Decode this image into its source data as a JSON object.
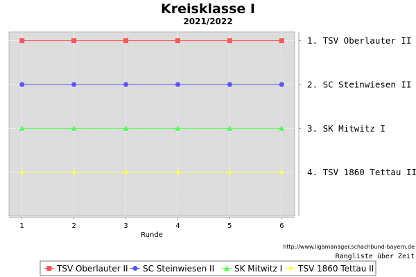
{
  "chart_data": {
    "type": "line",
    "title": "Kreisklasse I",
    "subtitle": "2021/2022",
    "xlabel": "Runde",
    "ylabel": "",
    "x": [
      1,
      2,
      3,
      4,
      5,
      6
    ],
    "xlim": [
      0.75,
      6.25
    ],
    "ylim": [
      0.8,
      5.0
    ],
    "y_inverted": true,
    "grid": true,
    "legend_position": "bottom",
    "right_labels": [
      "1. TSV Oberlauter II",
      "2. SC Steinwiesen II",
      "3. SK Mitwitz I",
      "4. TSV 1860 Tettau II"
    ],
    "series": [
      {
        "name": "TSV Oberlauter II",
        "values": [
          1,
          1,
          1,
          1,
          1,
          1
        ],
        "color": "#ff5555",
        "marker": "square"
      },
      {
        "name": "SC Steinwiesen II",
        "values": [
          2,
          2,
          2,
          2,
          2,
          2
        ],
        "color": "#5555ff",
        "marker": "circle"
      },
      {
        "name": "SK Mitwitz I",
        "values": [
          3,
          3,
          3,
          3,
          3,
          3
        ],
        "color": "#55ff55",
        "marker": "triangle"
      },
      {
        "name": "TSV 1860 Tettau II",
        "values": [
          4,
          4,
          4,
          4,
          4,
          4
        ],
        "color": "#ffff55",
        "marker": "diamond"
      }
    ]
  },
  "footer": {
    "url": "http://www.ligamanager.schachbund-bayern.de",
    "caption": "Rangliste über Zeit"
  },
  "colors": {
    "plot_background": "#dcdcdc",
    "grid": "#ffffff"
  }
}
